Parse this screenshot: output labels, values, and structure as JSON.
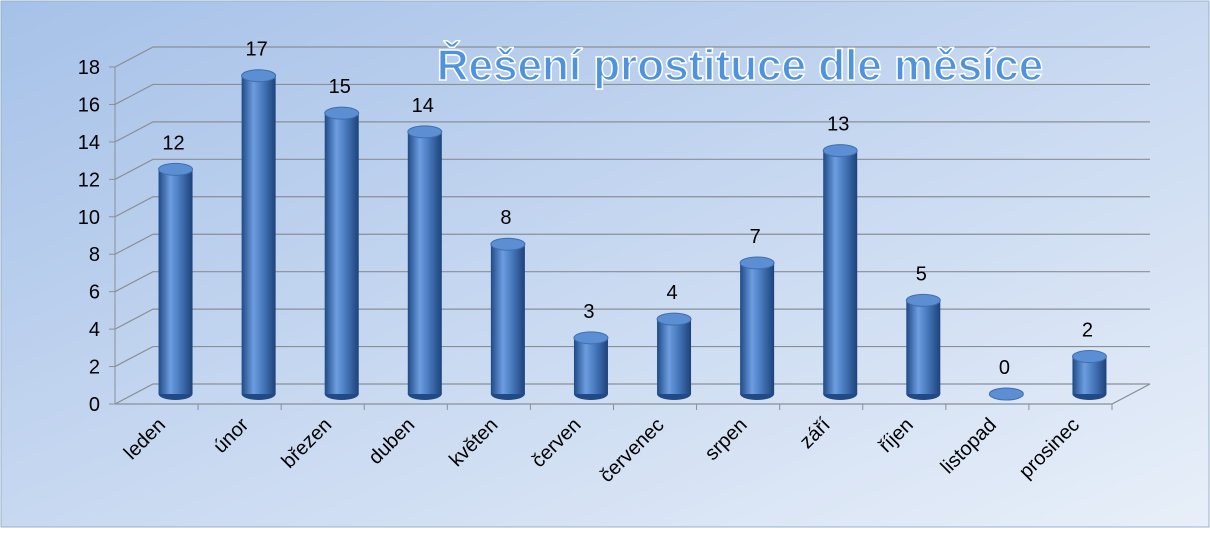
{
  "chart_data": {
    "type": "bar",
    "title": "Řešení prostituce dle měsíce",
    "categories": [
      "leden",
      "únor",
      "březen",
      "duben",
      "květen",
      "červen",
      "červenec",
      "srpen",
      "září",
      "říjen",
      "listopad",
      "prosinec"
    ],
    "values": [
      12,
      17,
      15,
      14,
      8,
      3,
      4,
      7,
      13,
      5,
      0,
      2
    ],
    "color": "#4a7cc0",
    "ylim": [
      0,
      18
    ],
    "yticks": [
      0,
      2,
      4,
      6,
      8,
      10,
      12,
      14,
      16,
      18
    ],
    "grid": true
  }
}
